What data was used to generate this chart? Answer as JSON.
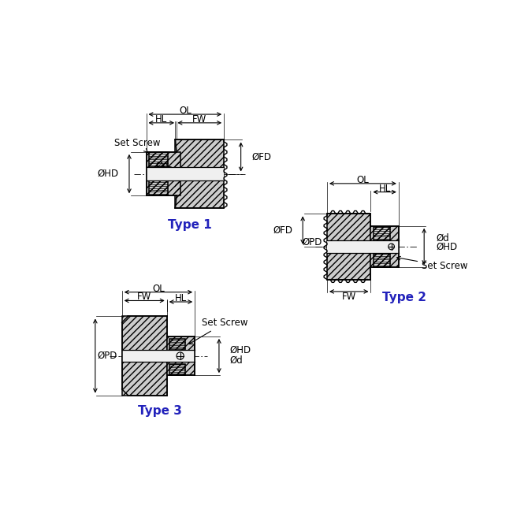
{
  "bg_color": "#ffffff",
  "type_color": "#2222bb",
  "fs_dim": 8.5,
  "fs_type": 11,
  "type1_label": "Type 1",
  "type2_label": "Type 2",
  "type3_label": "Type 3"
}
